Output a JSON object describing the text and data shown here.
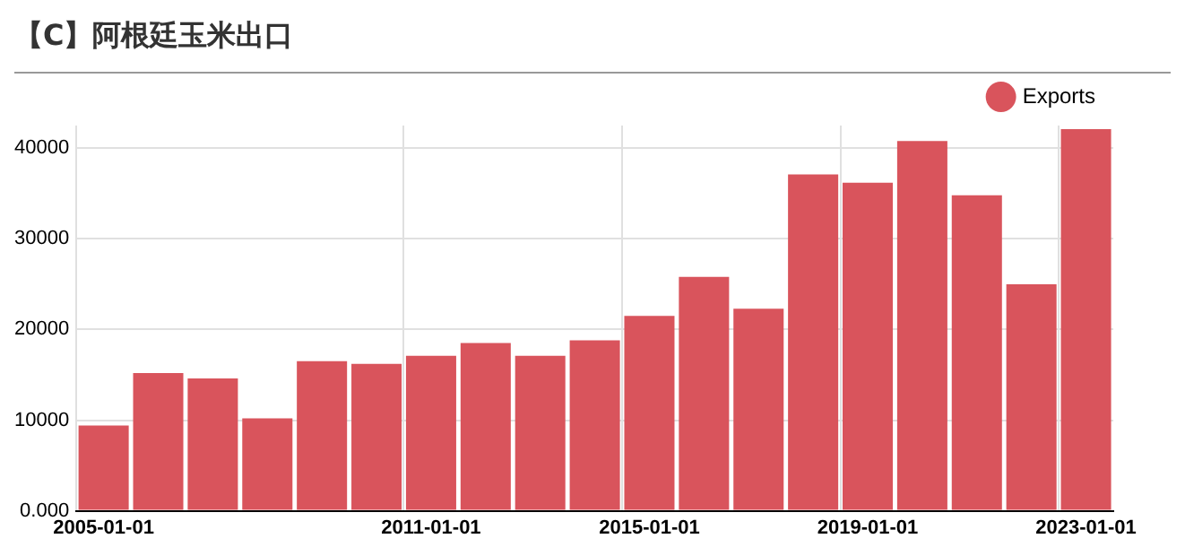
{
  "chart_data": {
    "type": "bar",
    "title": "【C】阿根廷玉米出口",
    "categories": [
      "2005-01-01",
      null,
      null,
      null,
      null,
      null,
      "2011-01-01",
      null,
      null,
      null,
      "2015-01-01",
      null,
      null,
      null,
      "2019-01-01",
      null,
      null,
      null,
      "2023-01-01"
    ],
    "series": [
      {
        "name": "Exports",
        "color": "#d9545c",
        "values": [
          9400,
          15200,
          14600,
          10200,
          16500,
          16200,
          17100,
          18500,
          17100,
          18800,
          21500,
          25800,
          22300,
          37100,
          36200,
          40800,
          34800,
          25000,
          42100
        ]
      }
    ],
    "ylim": [
      0,
      42500
    ],
    "yticks": [
      {
        "value": 0,
        "label": "0.000"
      },
      10000,
      20000,
      30000,
      40000
    ],
    "grid": true,
    "legend": "top right"
  }
}
